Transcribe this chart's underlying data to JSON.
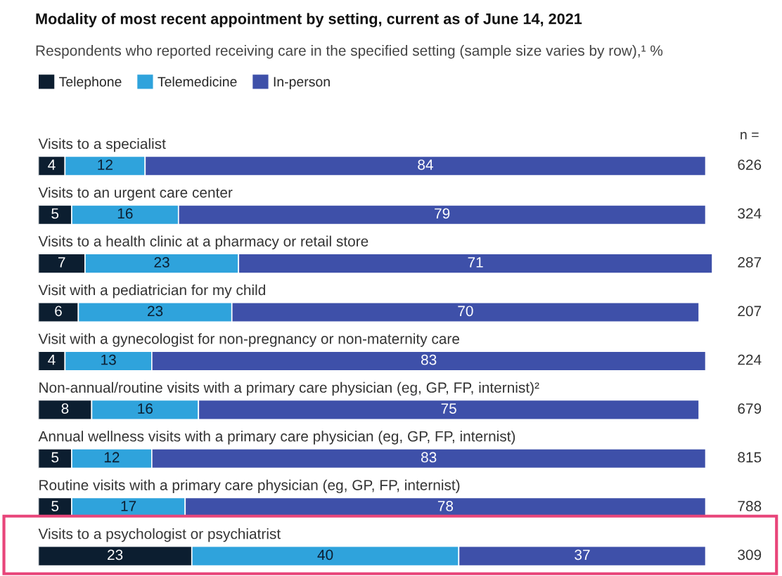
{
  "chart_data": {
    "type": "bar",
    "orientation": "horizontal",
    "stacked": true,
    "title": "Modality of most recent appointment by setting, current as of June 14, 2021",
    "subtitle": "Respondents who reported receiving care in the specified setting (sample size varies by row),¹ %",
    "categories": [
      "Visits to a specialist",
      "Visits to an urgent care center",
      "Visits to a health clinic at a pharmacy or retail store",
      "Visit with a pediatrician for my child",
      "Visit with a gynecologist for non-pregnancy or non-maternity care",
      "Non-annual/routine visits with a primary care physician (eg, GP, FP, internist)²",
      "Annual wellness visits with a primary care physician (eg, GP, FP, internist)",
      "Routine visits with a primary care physician (eg, GP, FP, internist)",
      "Visits to a psychologist or psychiatrist"
    ],
    "series": [
      {
        "name": "Telephone",
        "color": "#0c1e30",
        "values": [
          4,
          5,
          7,
          6,
          4,
          8,
          5,
          5,
          23
        ]
      },
      {
        "name": "Telemedicine",
        "color": "#2fa3dc",
        "values": [
          12,
          16,
          23,
          23,
          13,
          16,
          12,
          17,
          40
        ]
      },
      {
        "name": "In-person",
        "color": "#3e50a9",
        "values": [
          84,
          79,
          71,
          70,
          83,
          75,
          83,
          78,
          37
        ]
      }
    ],
    "xlim": [
      0,
      101
    ],
    "data_labels": true,
    "legend": "top left",
    "annotations": [
      "n =",
      "626",
      "324",
      "287",
      "207",
      "224",
      "679",
      "815",
      "788",
      "309"
    ]
  }
}
